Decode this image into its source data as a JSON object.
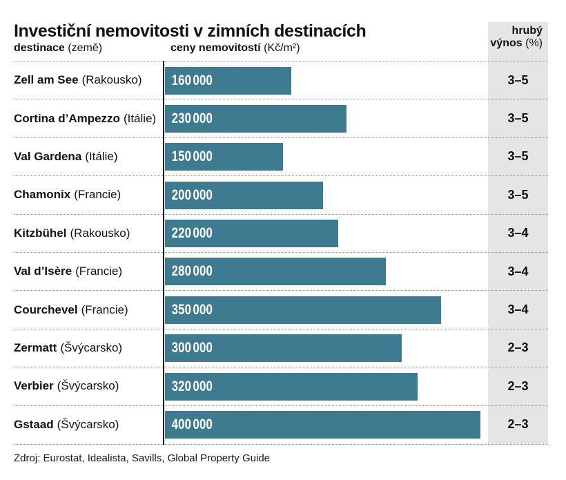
{
  "title": "Investiční nemovitosti v zimních destinacích",
  "header": {
    "destination": {
      "name": "destinace",
      "unit": "(země)"
    },
    "price": {
      "name": "ceny nemovitostí",
      "unit": "(Kč/m²)"
    },
    "yield": {
      "line1": "hrubý",
      "line2": "výnos",
      "unit": "(%)"
    }
  },
  "source": "Zdroj: Eurostat, Idealista, Savills, Global Property Guide",
  "colors": {
    "bar": "#3e7a90",
    "bar_label": "#ffffff",
    "yield_panel": "#e5e5e3",
    "axis": "#111111",
    "separator": "#8f8f8f"
  },
  "chart_data": {
    "type": "bar",
    "orientation": "horizontal",
    "title": "Investiční nemovitosti v zimních destinacích",
    "xlabel": "ceny nemovitostí (Kč/m²)",
    "ylabel": "destinace (země)",
    "value_column_label": "hrubý výnos (%)",
    "xlim": [
      0,
      400000
    ],
    "grid": false,
    "legend": "none",
    "rows": [
      {
        "destination": "Zell am See",
        "country": "(Rakousko)",
        "price": 160000,
        "price_label": "160 000",
        "gross_yield_pct": "3–5"
      },
      {
        "destination": "Cortina d’Ampezzo",
        "country": "(Itálie)",
        "price": 230000,
        "price_label": "230 000",
        "gross_yield_pct": "3–5"
      },
      {
        "destination": "Val Gardena",
        "country": "(Itálie)",
        "price": 150000,
        "price_label": "150 000",
        "gross_yield_pct": "3–5"
      },
      {
        "destination": "Chamonix",
        "country": "(Francie)",
        "price": 200000,
        "price_label": "200 000",
        "gross_yield_pct": "3–5"
      },
      {
        "destination": "Kitzbühel",
        "country": "(Rakousko)",
        "price": 220000,
        "price_label": "220 000",
        "gross_yield_pct": "3–4"
      },
      {
        "destination": "Val d’Isère",
        "country": "(Francie)",
        "price": 280000,
        "price_label": "280 000",
        "gross_yield_pct": "3–4"
      },
      {
        "destination": "Courchevel",
        "country": "(Francie)",
        "price": 350000,
        "price_label": "350 000",
        "gross_yield_pct": "3–4"
      },
      {
        "destination": "Zermatt",
        "country": "(Švýcarsko)",
        "price": 300000,
        "price_label": "300 000",
        "gross_yield_pct": "2–3"
      },
      {
        "destination": "Verbier",
        "country": "(Švýcarsko)",
        "price": 320000,
        "price_label": "320 000",
        "gross_yield_pct": "2–3"
      },
      {
        "destination": "Gstaad",
        "country": "(Švýcarsko)",
        "price": 400000,
        "price_label": "400 000",
        "gross_yield_pct": "2–3"
      }
    ]
  }
}
